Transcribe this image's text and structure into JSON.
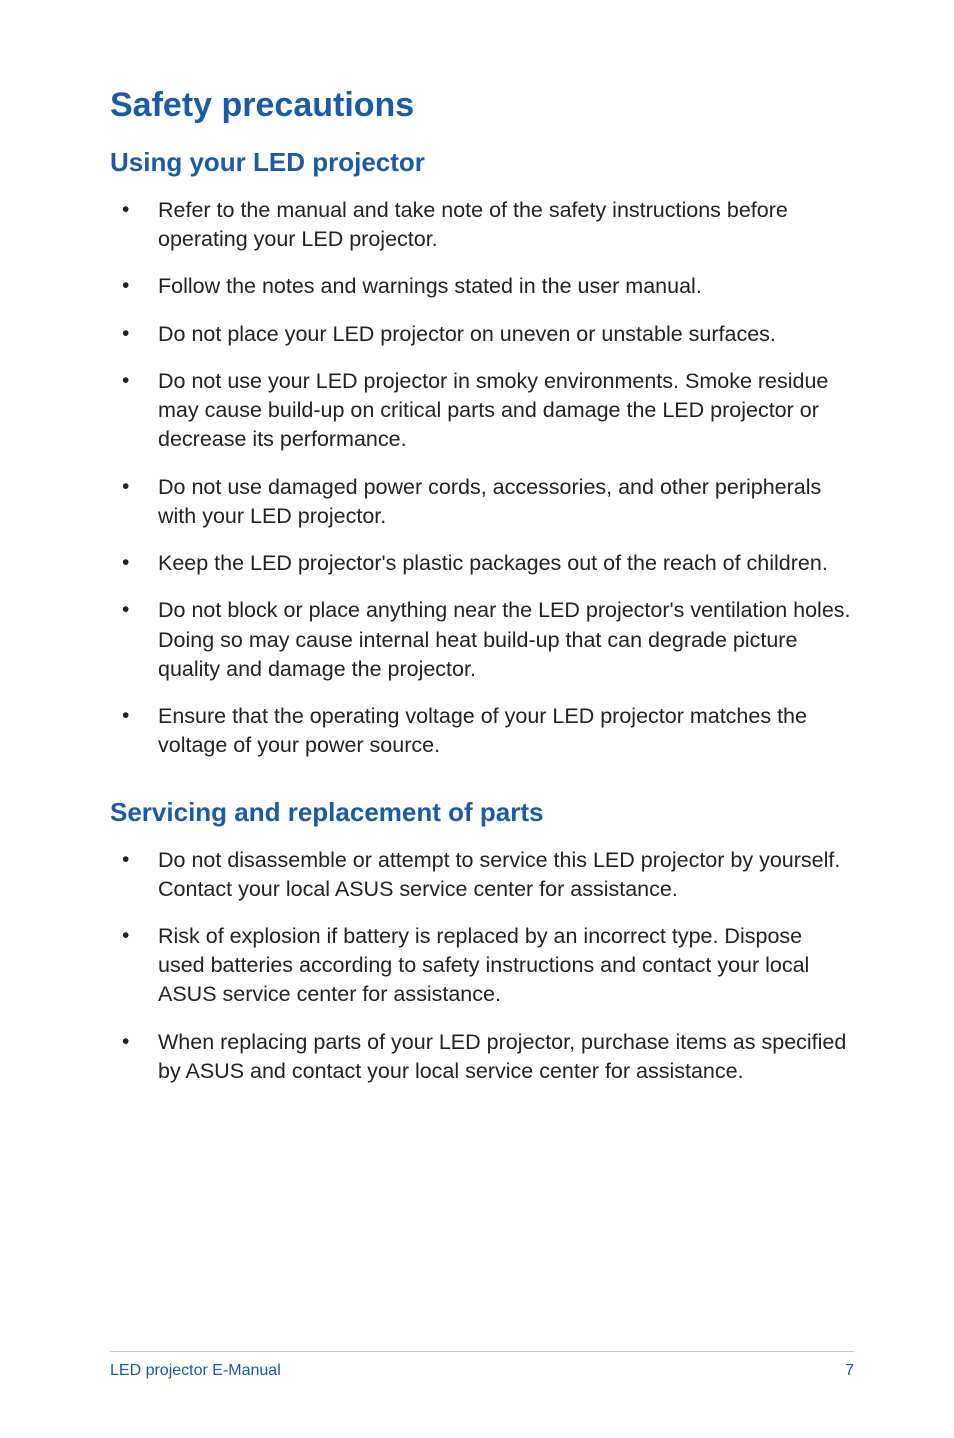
{
  "title": "Safety precautions",
  "section1": {
    "heading": "Using your LED projector",
    "items": [
      "Refer to the manual and take note of the safety instructions before operating your LED projector.",
      "Follow the notes and warnings stated in the user manual.",
      "Do not place your LED projector on uneven or unstable surfaces.",
      "Do not use your LED projector in smoky environments. Smoke residue may cause build-up on critical parts and damage the LED projector or decrease its performance.",
      "Do not use damaged power cords, accessories, and other peripherals with your LED projector.",
      "Keep the LED projector's plastic packages out of the reach of children.",
      "Do not block or place anything near the LED projector's ventilation holes. Doing so may cause internal heat build-up that can degrade picture quality and damage the projector.",
      "Ensure that the operating voltage of your LED projector matches the voltage of your power source."
    ]
  },
  "section2": {
    "heading": "Servicing and replacement of parts",
    "items": [
      "Do not disassemble or attempt to service this LED projector by yourself. Contact your local ASUS service center for assistance.",
      "Risk of explosion if battery is replaced by an incorrect type. Dispose used batteries according to safety instructions and contact your local ASUS service center for assistance.",
      "When replacing parts of your LED projector, purchase items as specified by ASUS and contact your local service center for assistance."
    ]
  },
  "footer": {
    "doc_title": "LED projector E-Manual",
    "page_number": "7"
  }
}
